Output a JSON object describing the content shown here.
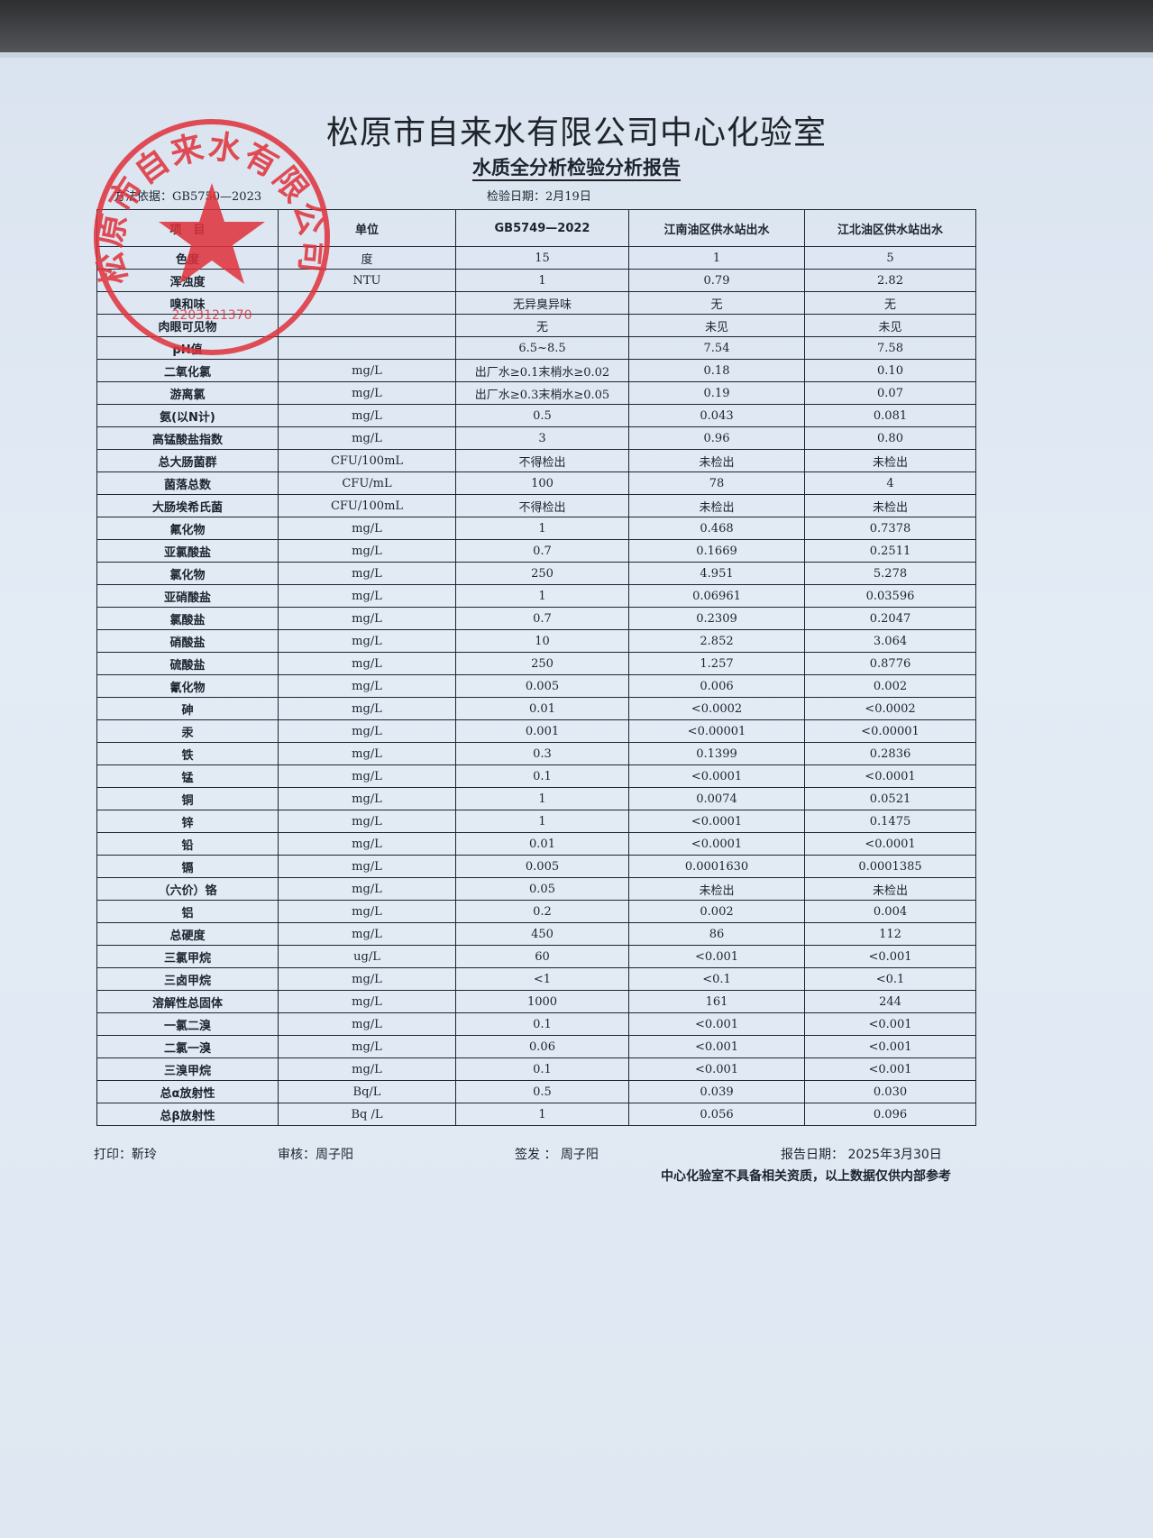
{
  "header": {
    "title": "松原市自来水有限公司中心化验室",
    "subtitle": "水质全分析检验分析报告",
    "method": "方法依据：GB5750—2023",
    "test_date": "检验日期：2月19日"
  },
  "stamp": {
    "text": "松原市自来水有限公司",
    "number": "2203121370",
    "color": "#e0313a"
  },
  "table": {
    "columns": [
      "项　目",
      "单位",
      "GB5749—2022",
      "江南油区供水站出水",
      "江北油区供水站出水"
    ],
    "rows": [
      [
        "色度",
        "度",
        "15",
        "1",
        "5"
      ],
      [
        "浑浊度",
        "NTU",
        "1",
        "0.79",
        "2.82"
      ],
      [
        "嗅和味",
        "",
        "无异臭异味",
        "无",
        "无"
      ],
      [
        "肉眼可见物",
        "",
        "无",
        "未见",
        "未见"
      ],
      [
        "pH值",
        "",
        "6.5~8.5",
        "7.54",
        "7.58"
      ],
      [
        "二氧化氯",
        "mg/L",
        "出厂水≥0.1末梢水≥0.02",
        "0.18",
        "0.10"
      ],
      [
        "游离氯",
        "mg/L",
        "出厂水≥0.3末梢水≥0.05",
        "0.19",
        "0.07"
      ],
      [
        "氨(以N计)",
        "mg/L",
        "0.5",
        "0.043",
        "0.081"
      ],
      [
        "高锰酸盐指数",
        "mg/L",
        "3",
        "0.96",
        "0.80"
      ],
      [
        "总大肠菌群",
        "CFU/100mL",
        "不得检出",
        "未检出",
        "未检出"
      ],
      [
        "菌落总数",
        "CFU/mL",
        "100",
        "78",
        "4"
      ],
      [
        "大肠埃希氏菌",
        "CFU/100mL",
        "不得检出",
        "未检出",
        "未检出"
      ],
      [
        "氟化物",
        "mg/L",
        "1",
        "0.468",
        "0.7378"
      ],
      [
        "亚氯酸盐",
        "mg/L",
        "0.7",
        "0.1669",
        "0.2511"
      ],
      [
        "氯化物",
        "mg/L",
        "250",
        "4.951",
        "5.278"
      ],
      [
        "亚硝酸盐",
        "mg/L",
        "1",
        "0.06961",
        "0.03596"
      ],
      [
        "氯酸盐",
        "mg/L",
        "0.7",
        "0.2309",
        "0.2047"
      ],
      [
        "硝酸盐",
        "mg/L",
        "10",
        "2.852",
        "3.064"
      ],
      [
        "硫酸盐",
        "mg/L",
        "250",
        "1.257",
        "0.8776"
      ],
      [
        "氰化物",
        "mg/L",
        "0.005",
        "0.006",
        "0.002"
      ],
      [
        "砷",
        "mg/L",
        "0.01",
        "<0.0002",
        "<0.0002"
      ],
      [
        "汞",
        "mg/L",
        "0.001",
        "<0.00001",
        "<0.00001"
      ],
      [
        "铁",
        "mg/L",
        "0.3",
        "0.1399",
        "0.2836"
      ],
      [
        "锰",
        "mg/L",
        "0.1",
        "<0.0001",
        "<0.0001"
      ],
      [
        "铜",
        "mg/L",
        "1",
        "0.0074",
        "0.0521"
      ],
      [
        "锌",
        "mg/L",
        "1",
        "<0.0001",
        "0.1475"
      ],
      [
        "铅",
        "mg/L",
        "0.01",
        "<0.0001",
        "<0.0001"
      ],
      [
        "镉",
        "mg/L",
        "0.005",
        "0.0001630",
        "0.0001385"
      ],
      [
        "（六价）铬",
        "mg/L",
        "0.05",
        "未检出",
        "未检出"
      ],
      [
        "铝",
        "mg/L",
        "0.2",
        "0.002",
        "0.004"
      ],
      [
        "总硬度",
        "mg/L",
        "450",
        "86",
        "112"
      ],
      [
        "三氯甲烷",
        "ug/L",
        "60",
        "<0.001",
        "<0.001"
      ],
      [
        "三卤甲烷",
        "mg/L",
        "<1",
        "<0.1",
        "<0.1"
      ],
      [
        "溶解性总固体",
        "mg/L",
        "1000",
        "161",
        "244"
      ],
      [
        "一氯二溴",
        "mg/L",
        "0.1",
        "<0.001",
        "<0.001"
      ],
      [
        "二氯一溴",
        "mg/L",
        "0.06",
        "<0.001",
        "<0.001"
      ],
      [
        "三溴甲烷",
        "mg/L",
        "0.1",
        "<0.001",
        "<0.001"
      ],
      [
        "总α放射性",
        "Bq/L",
        "0.5",
        "0.039",
        "0.030"
      ],
      [
        "总β放射性",
        "Bq /L",
        "1",
        "0.056",
        "0.096"
      ]
    ]
  },
  "footer": {
    "printer": "打印：靳玲",
    "reviewer": "审核：周子阳",
    "issuer": "签发 ：  周子阳",
    "report_date": "报告日期：  2025年3月30日",
    "disclaimer": "中心化验室不具备相关资质，以上数据仅供内部参考"
  }
}
